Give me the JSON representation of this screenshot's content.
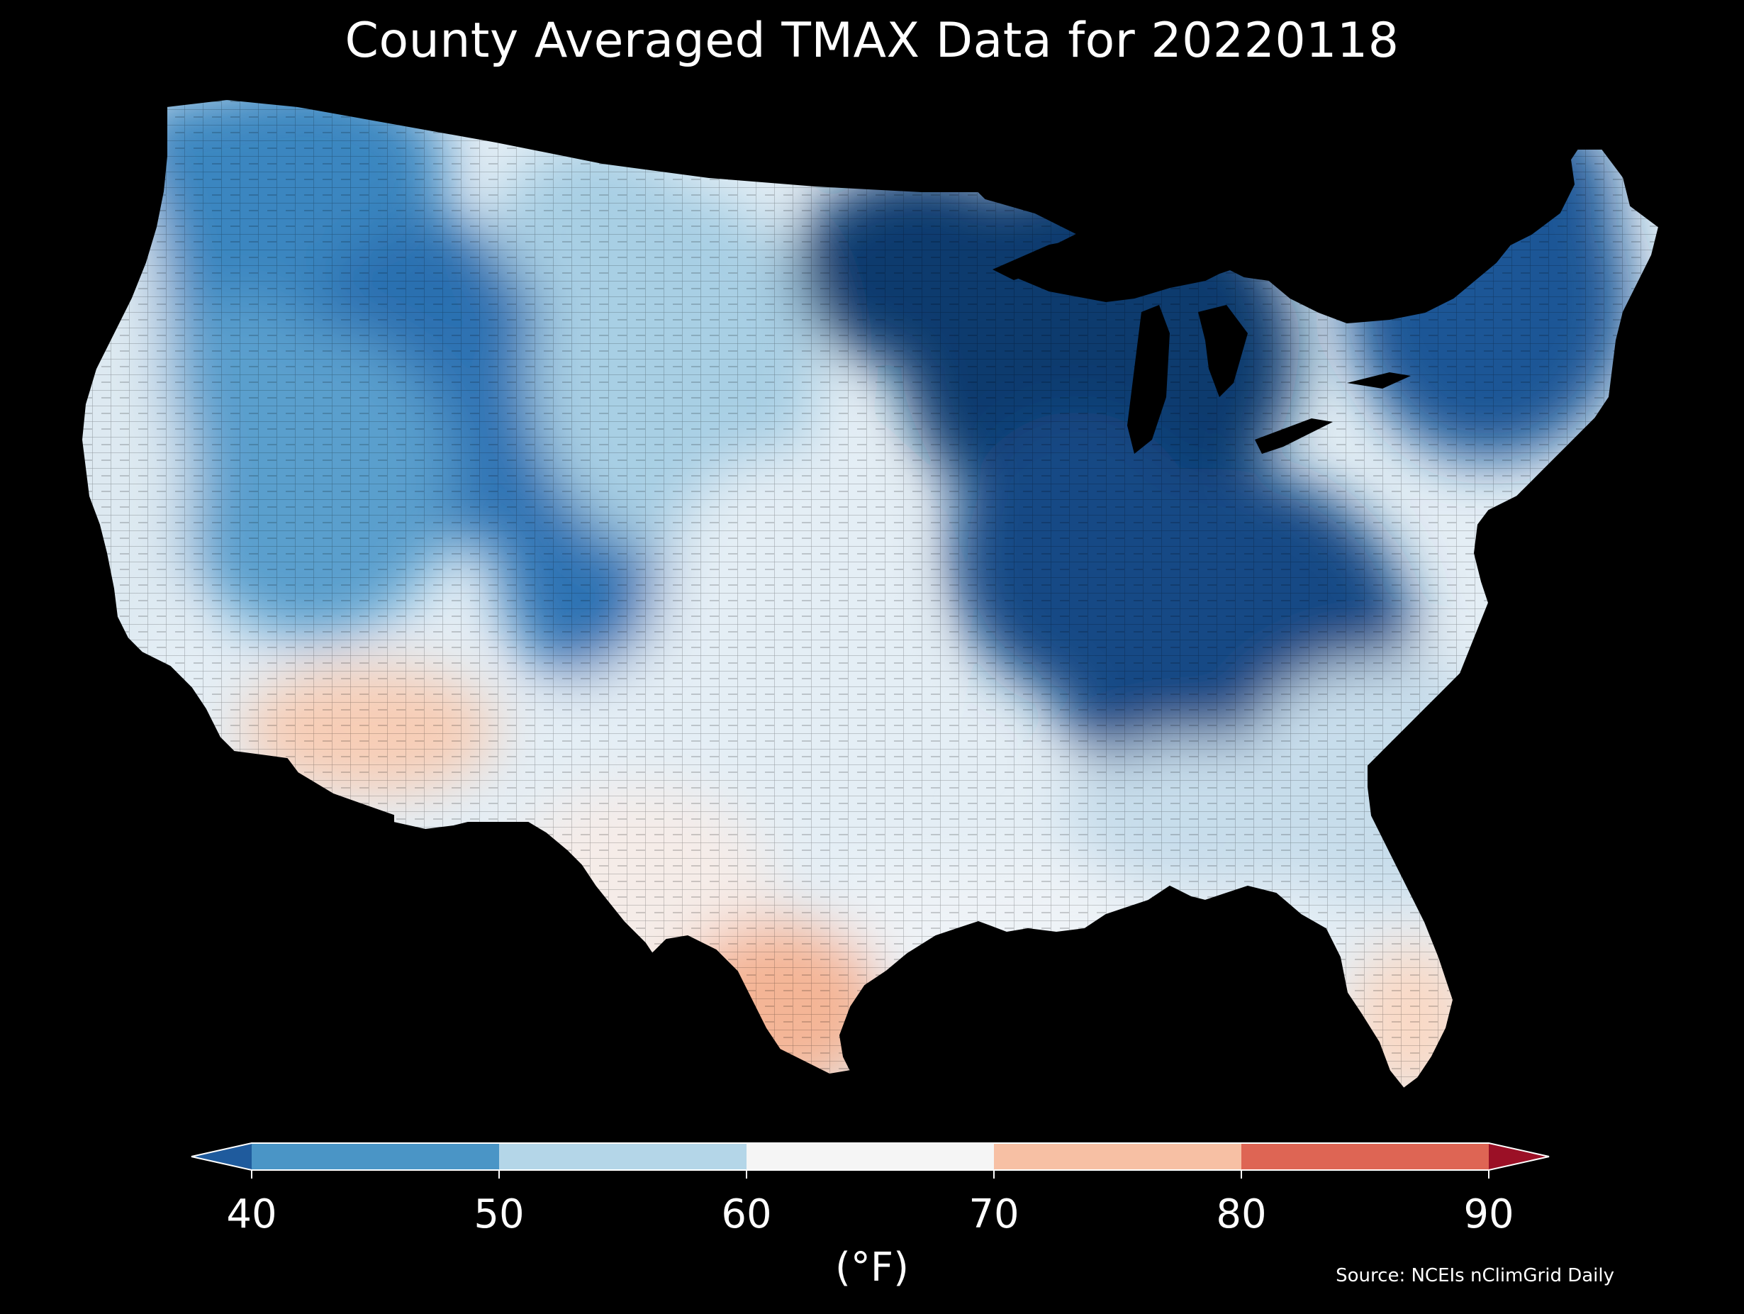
{
  "title": "County Averaged TMAX Data for 20220118",
  "colorbar": {
    "unit": "(°F)",
    "ticks": [
      "40",
      "50",
      "60",
      "70",
      "80",
      "90"
    ],
    "bins": [
      {
        "range": [
          null,
          40
        ],
        "color": "#1f5b9d"
      },
      {
        "range": [
          40,
          50
        ],
        "color": "#4a95c6"
      },
      {
        "range": [
          50,
          60
        ],
        "color": "#b4d6e8"
      },
      {
        "range": [
          60,
          70
        ],
        "color": "#f5f5f5"
      },
      {
        "range": [
          70,
          80
        ],
        "color": "#f7c0a4"
      },
      {
        "range": [
          80,
          90
        ],
        "color": "#de6554"
      },
      {
        "range": [
          90,
          null
        ],
        "color": "#9b1026"
      }
    ]
  },
  "source": "Source: NCEIs nClimGrid Daily",
  "map": {
    "region": "Contiguous United States, county level",
    "background": "#000000",
    "regions": [
      {
        "name": "upper-midwest-great-lakes",
        "tmax_f": "below 40",
        "color": "#0b3a6e"
      },
      {
        "name": "ohio-valley-appalachia",
        "tmax_f": "below 40",
        "color": "#124a85"
      },
      {
        "name": "northeast-new-england",
        "tmax_f": "below 40",
        "color": "#1a5696"
      },
      {
        "name": "northern-rockies-montana-wyoming",
        "tmax_f": "around 40",
        "color": "#2c6fb0"
      },
      {
        "name": "colorado-rockies",
        "tmax_f": "around 40",
        "color": "#2e73b4"
      },
      {
        "name": "pacific-northwest-interior",
        "tmax_f": "40-50",
        "color": "#3a86c0"
      },
      {
        "name": "great-basin",
        "tmax_f": "40-50",
        "color": "#5a9fcd"
      },
      {
        "name": "northern-plains",
        "tmax_f": "50-60",
        "color": "#a8cfe4"
      },
      {
        "name": "central-plains",
        "tmax_f": "60-70",
        "color": "#e4eef5"
      },
      {
        "name": "california",
        "tmax_f": "60-70",
        "color": "#dde9f1"
      },
      {
        "name": "southern-plains-texas",
        "tmax_f": "60-70",
        "color": "#f5ece8"
      },
      {
        "name": "gulf-coast",
        "tmax_f": "60-70",
        "color": "#eef3f7"
      },
      {
        "name": "southeast",
        "tmax_f": "50-60",
        "color": "#c7ddeb"
      },
      {
        "name": "south-texas",
        "tmax_f": "70-80",
        "color": "#f4b596"
      },
      {
        "name": "arizona-desert",
        "tmax_f": "70-80",
        "color": "#f7cdb6"
      },
      {
        "name": "south-florida",
        "tmax_f": "70-80",
        "color": "#f9d9c6"
      }
    ]
  }
}
